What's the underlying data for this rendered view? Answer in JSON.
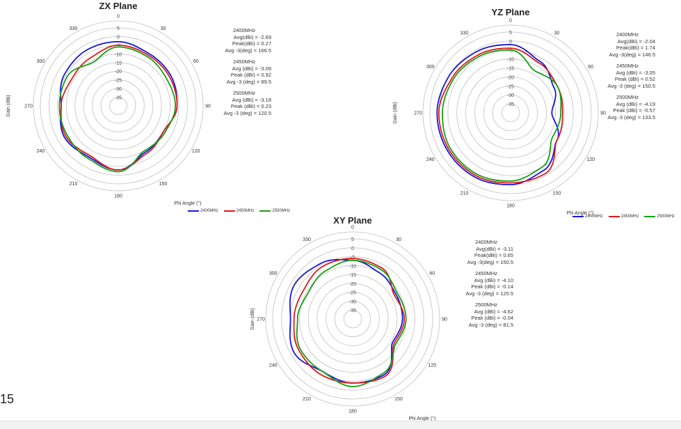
{
  "page_number": "15",
  "colors": {
    "2400MHz": "#1515e6",
    "2450MHz": "#e01919",
    "2500MHz": "#14a014",
    "grid": "#bfbfbf"
  },
  "chart_data": [
    {
      "type": "polar",
      "title": "ZX Plane",
      "ylabel": "Gain (dBi)",
      "xlabel": "Phi Angle (°)",
      "angle_ticks": [
        "0",
        "30",
        "60",
        "90",
        "120",
        "150",
        "180",
        "210",
        "240",
        "270",
        "300",
        "330"
      ],
      "radial_ticks": [
        "5",
        "0",
        "-5",
        "-10",
        "-15",
        "-20",
        "-25",
        "-30",
        "-35"
      ],
      "rlim": [
        -40,
        5
      ],
      "legend": [
        "2400MHz",
        "2450MHz",
        "2500MHz"
      ],
      "stats": [
        {
          "freq": "2400MHz",
          "lines": [
            "Avg(dBi) = -2.69",
            "Peak(dBi) = 0.27",
            "Avg -3(deg) = 166.5"
          ]
        },
        {
          "freq": "2450MHz",
          "lines": [
            "Avg (dBi) = -3.09",
            "Peak (dBi) = 0.92",
            "Avg -3 (deg) = 89.5"
          ]
        },
        {
          "freq": "2500MHz",
          "lines": [
            "Avg (dBi) = -3.18",
            "Peak (dBi) = 0.23",
            "Avg -3 (deg) = 120.5"
          ]
        }
      ],
      "angles": [
        0,
        30,
        60,
        90,
        120,
        150,
        180,
        210,
        240,
        270,
        300,
        330
      ],
      "series": [
        {
          "name": "2400MHz",
          "values": [
            -3,
            -5,
            -5,
            -6,
            -10,
            -9,
            -3,
            -6,
            -4,
            -7,
            -4,
            -3
          ]
        },
        {
          "name": "2450MHz",
          "values": [
            -5,
            -6,
            -6,
            -6,
            -10,
            -8,
            -3,
            -7,
            -5,
            -7,
            -9,
            -8
          ]
        },
        {
          "name": "2500MHz",
          "values": [
            -6,
            -7,
            -8,
            -7,
            -9,
            -10,
            -2,
            -5,
            -6,
            -6,
            -6,
            -11
          ]
        }
      ]
    },
    {
      "type": "polar",
      "title": "YZ Plane",
      "ylabel": "Gain (dBi)",
      "xlabel": "Phi Angle (°)",
      "angle_ticks": [
        "0",
        "30",
        "60",
        "90",
        "120",
        "150",
        "180",
        "210",
        "240",
        "270",
        "300",
        "330"
      ],
      "radial_ticks": [
        "5",
        "0",
        "-5",
        "-10",
        "-15",
        "-20",
        "-25",
        "-30",
        "-35"
      ],
      "rlim": [
        -40,
        5
      ],
      "legend": [
        "2400MHz",
        "2450MHz",
        "2500MHz"
      ],
      "stats": [
        {
          "freq": "2400MHz",
          "lines": [
            "Avg(dBi) = -2.04",
            "Peak(dBi) = 1.74",
            "Avg -3(deg) = 146.5"
          ]
        },
        {
          "freq": "2450MHz",
          "lines": [
            "Avg (dBi) = -3.05",
            "Peak (dBi) = 0.52",
            "Avg -3 (deg) = 150.5"
          ]
        },
        {
          "freq": "2500MHz",
          "lines": [
            "Avg (dBi) = -4.19",
            "Peak (dBi) = -0.57",
            "Avg -3 (deg) = 133.5"
          ]
        }
      ],
      "angles": [
        0,
        30,
        60,
        90,
        120,
        150,
        180,
        210,
        240,
        270,
        300,
        330
      ],
      "series": [
        {
          "name": "2400MHz",
          "values": [
            -2,
            -7,
            -12,
            -17,
            -10,
            -3,
            0,
            1,
            1,
            1,
            0,
            -1
          ]
        },
        {
          "name": "2450MHz",
          "values": [
            -4,
            -8,
            -10,
            -11,
            -10,
            -1,
            -1,
            0,
            0,
            0,
            -2,
            -3
          ]
        },
        {
          "name": "2500MHz",
          "values": [
            -5,
            -13,
            -10,
            -12,
            -13,
            -5,
            -2,
            -1,
            -1,
            -2,
            -3,
            -4
          ]
        }
      ]
    },
    {
      "type": "polar",
      "title": "XY Plane",
      "ylabel": "Gain (dBi)",
      "xlabel": "Phi Angle (°)",
      "angle_ticks": [
        "0",
        "30",
        "60",
        "90",
        "120",
        "150",
        "180",
        "210",
        "240",
        "270",
        "300",
        "330"
      ],
      "radial_ticks": [
        "5",
        "0",
        "-5",
        "-10",
        "-15",
        "-20",
        "-25",
        "-30",
        "-35"
      ],
      "rlim": [
        -40,
        5
      ],
      "legend": [
        "2400MHz",
        "2450MHz",
        "2500MHz"
      ],
      "stats": [
        {
          "freq": "2400MHz",
          "lines": [
            "Avg(dBi) = -3.11",
            "Peak(dBi) = 0.65",
            "Avg -3(deg) = 150.5"
          ]
        },
        {
          "freq": "2450MHz",
          "lines": [
            "Avg (dBi) = -4.10",
            "Peak (dBi) = -0.14",
            "Avg -3 (deg) = 120.5"
          ]
        },
        {
          "freq": "2500MHz",
          "lines": [
            "Avg (dBi) = -4.62",
            "Peak (dBi) = -0.04",
            "Avg -3 (deg) = 81.5"
          ]
        }
      ],
      "angles": [
        0,
        30,
        60,
        90,
        120,
        150,
        180,
        210,
        240,
        270,
        300,
        330
      ],
      "series": [
        {
          "name": "2400MHz",
          "values": [
            -7,
            -10,
            -12,
            -12,
            -14,
            -4,
            -4,
            -6,
            -2,
            -5,
            -2,
            -4
          ]
        },
        {
          "name": "2450MHz",
          "values": [
            -6,
            -7,
            -13,
            -11,
            -13,
            -3,
            -4,
            -4,
            -5,
            -7,
            -8,
            -6
          ]
        },
        {
          "name": "2500MHz",
          "values": [
            -7,
            -8,
            -11,
            -10,
            -12,
            -5,
            -2,
            -6,
            -6,
            -9,
            -11,
            -9
          ]
        }
      ]
    }
  ]
}
